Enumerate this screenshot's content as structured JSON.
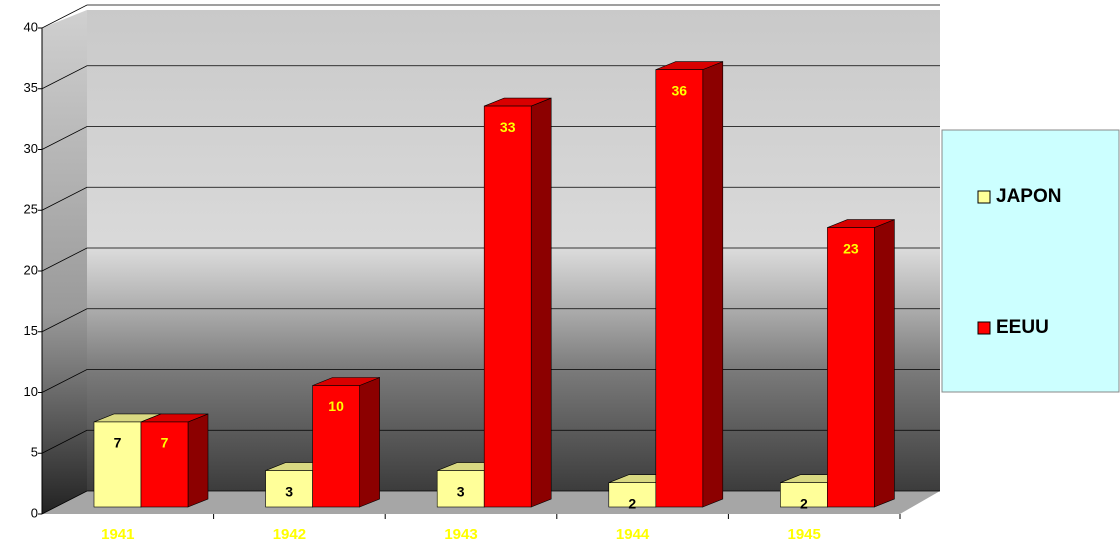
{
  "chart_data": {
    "type": "bar3d",
    "categories": [
      "1941",
      "1942",
      "1943",
      "1944",
      "1945"
    ],
    "series": [
      {
        "name": "JAPON",
        "color": "#ffff99",
        "label_color": "#000000",
        "values": [
          7,
          3,
          3,
          2,
          2
        ]
      },
      {
        "name": "EEUU",
        "color": "#ff0000",
        "label_color": "#ffff00",
        "values": [
          7,
          10,
          33,
          36,
          23
        ]
      }
    ],
    "ylim": [
      0,
      40
    ],
    "yticks": [
      0,
      5,
      10,
      15,
      20,
      25,
      30,
      35,
      40
    ],
    "grid": true,
    "legend": "right"
  }
}
